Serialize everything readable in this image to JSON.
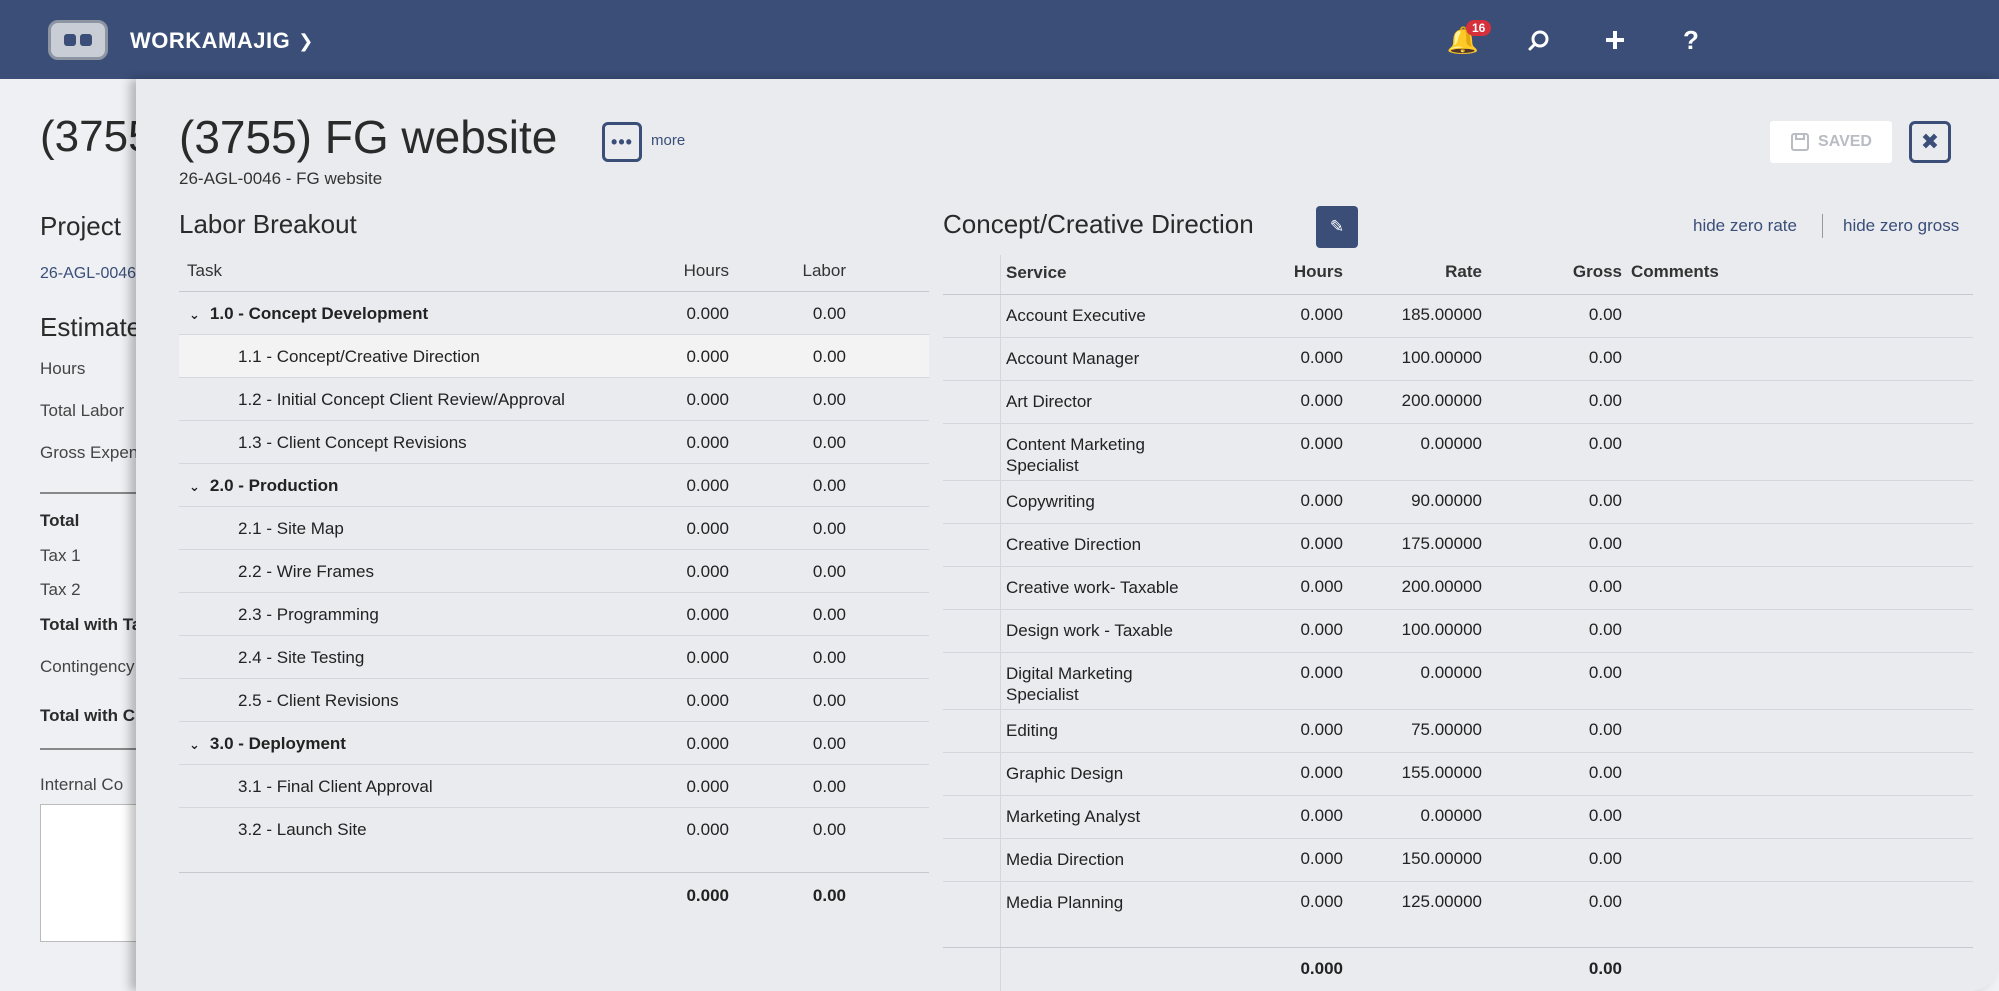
{
  "app": {
    "name": "WORKAMAJIG",
    "notification_count": "16"
  },
  "background": {
    "title": "(3755",
    "project_label": "Project",
    "project_link": "26-AGL-0046",
    "estimate_label": "Estimate",
    "rows": [
      "Hours",
      "Total Labor",
      "Gross Expen"
    ],
    "total": "Total",
    "tax1": "Tax 1",
    "tax2": "Tax 2",
    "total_with_tax": "Total with Ta",
    "contingency": "Contingency",
    "total_with_c": "Total with C",
    "internal_comments": "Internal Co"
  },
  "panel": {
    "title": "(3755) FG website",
    "subtitle": "26-AGL-0046 - FG website",
    "more_label": "more",
    "saved_label": "SAVED"
  },
  "labor": {
    "title": "Labor Breakout",
    "headers": {
      "task": "Task",
      "hours": "Hours",
      "labor": "Labor"
    },
    "rows": [
      {
        "task": "1.0 - Concept Development",
        "hours": "0.000",
        "labor": "0.00"
      },
      {
        "task": "1.1 - Concept/Creative Direction",
        "hours": "0.000",
        "labor": "0.00"
      },
      {
        "task": "1.2 - Initial Concept Client Review/Approval",
        "hours": "0.000",
        "labor": "0.00"
      },
      {
        "task": "1.3 - Client Concept Revisions",
        "hours": "0.000",
        "labor": "0.00"
      },
      {
        "task": "2.0 - Production",
        "hours": "0.000",
        "labor": "0.00"
      },
      {
        "task": "2.1 - Site Map",
        "hours": "0.000",
        "labor": "0.00"
      },
      {
        "task": "2.2 - Wire Frames",
        "hours": "0.000",
        "labor": "0.00"
      },
      {
        "task": "2.3 - Programming",
        "hours": "0.000",
        "labor": "0.00"
      },
      {
        "task": "2.4 - Site Testing",
        "hours": "0.000",
        "labor": "0.00"
      },
      {
        "task": "2.5 - Client Revisions",
        "hours": "0.000",
        "labor": "0.00"
      },
      {
        "task": "3.0 - Deployment",
        "hours": "0.000",
        "labor": "0.00"
      },
      {
        "task": "3.1 - Final Client Approval",
        "hours": "0.000",
        "labor": "0.00"
      },
      {
        "task": "3.2 - Launch Site",
        "hours": "0.000",
        "labor": "0.00"
      }
    ],
    "total_hours": "0.000",
    "total_labor": "0.00"
  },
  "services": {
    "title": "Concept/Creative Direction",
    "hide_zero_rate": "hide zero rate",
    "hide_zero_gross": "hide zero gross",
    "headers": {
      "service": "Service",
      "hours": "Hours",
      "rate": "Rate",
      "gross": "Gross",
      "comments": "Comments"
    },
    "rows": [
      {
        "service": "Account Executive",
        "hours": "0.000",
        "rate": "185.00000",
        "gross": "0.00"
      },
      {
        "service": "Account Manager",
        "hours": "0.000",
        "rate": "100.00000",
        "gross": "0.00"
      },
      {
        "service": "Art Director",
        "hours": "0.000",
        "rate": "200.00000",
        "gross": "0.00"
      },
      {
        "service": "Content Marketing Specialist",
        "hours": "0.000",
        "rate": "0.00000",
        "gross": "0.00"
      },
      {
        "service": "Copywriting",
        "hours": "0.000",
        "rate": "90.00000",
        "gross": "0.00"
      },
      {
        "service": "Creative Direction",
        "hours": "0.000",
        "rate": "175.00000",
        "gross": "0.00"
      },
      {
        "service": "Creative work- Taxable",
        "hours": "0.000",
        "rate": "200.00000",
        "gross": "0.00"
      },
      {
        "service": "Design work - Taxable",
        "hours": "0.000",
        "rate": "100.00000",
        "gross": "0.00"
      },
      {
        "service": "Digital Marketing Specialist",
        "hours": "0.000",
        "rate": "0.00000",
        "gross": "0.00"
      },
      {
        "service": "Editing",
        "hours": "0.000",
        "rate": "75.00000",
        "gross": "0.00"
      },
      {
        "service": "Graphic Design",
        "hours": "0.000",
        "rate": "155.00000",
        "gross": "0.00"
      },
      {
        "service": "Marketing Analyst",
        "hours": "0.000",
        "rate": "0.00000",
        "gross": "0.00"
      },
      {
        "service": "Media Direction",
        "hours": "0.000",
        "rate": "150.00000",
        "gross": "0.00"
      },
      {
        "service": "Media Planning",
        "hours": "0.000",
        "rate": "125.00000",
        "gross": "0.00"
      }
    ],
    "total_hours": "0.000",
    "total_gross": "0.00"
  }
}
